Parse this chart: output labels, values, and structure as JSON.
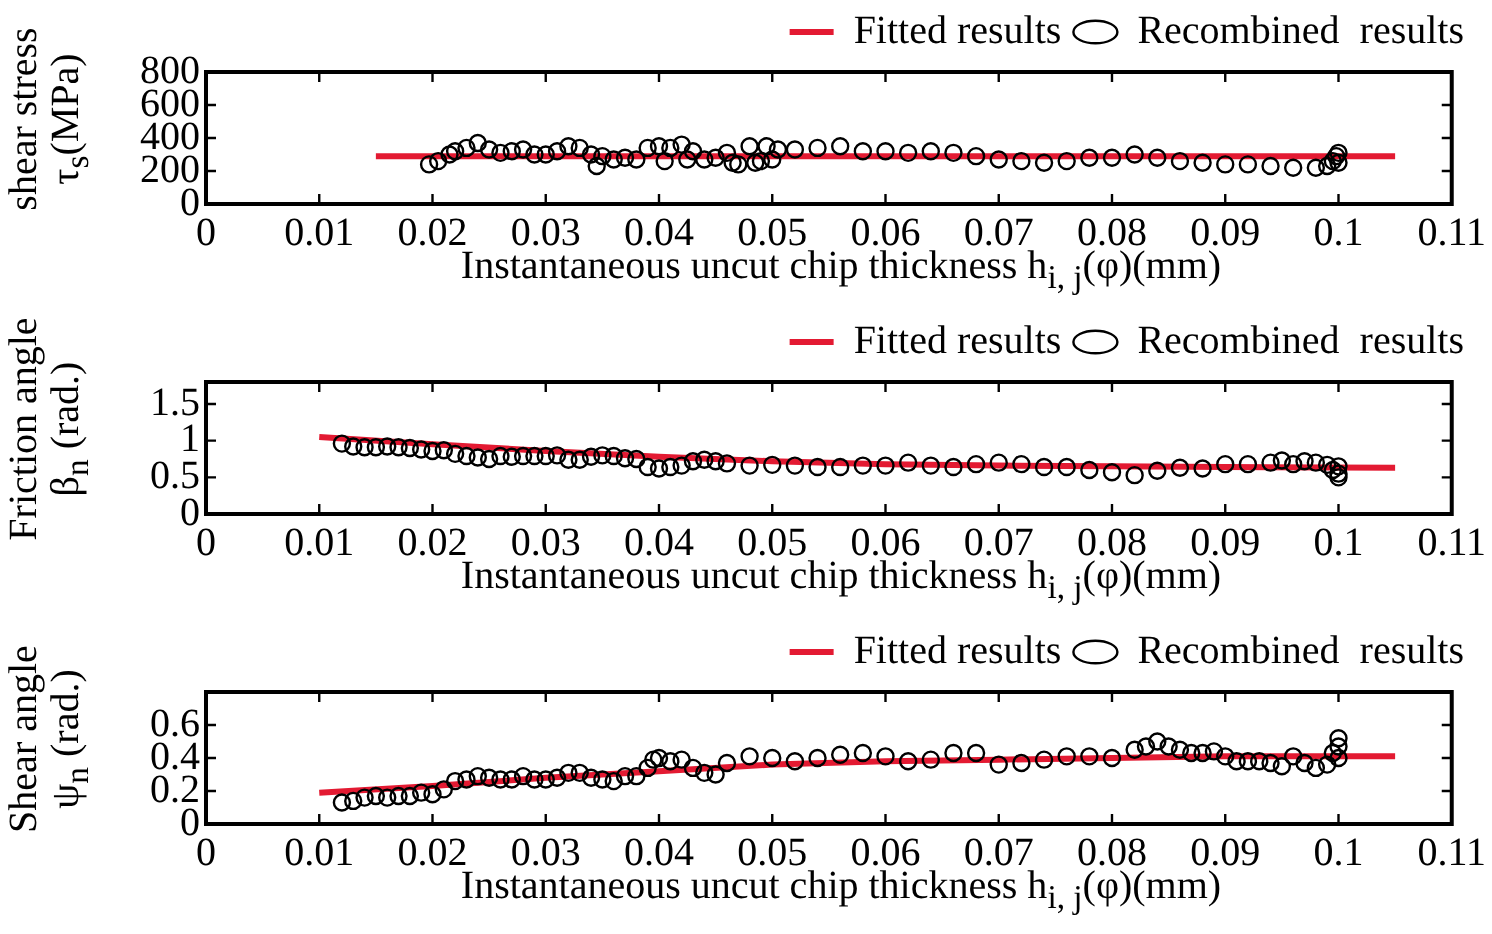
{
  "chart_data": [
    {
      "type": "scatter",
      "xlabel": "Instantaneous uncut chip thickness h$_{i, j}$(φ)(mm)",
      "ylabel": "shear stress\nτ$_{s}$(MPa)",
      "xlim": [
        0,
        0.11
      ],
      "xticks": [
        0,
        0.01,
        0.02,
        0.03,
        0.04,
        0.05,
        0.06,
        0.07,
        0.08,
        0.09,
        0.1,
        0.11
      ],
      "ylim": [
        0,
        800
      ],
      "yticks": [
        0,
        200,
        400,
        600,
        800
      ],
      "legend": "top right",
      "series": [
        {
          "name": "Fitted results",
          "type": "line",
          "color": "#e31a32",
          "marker": "none",
          "x": [
            0.015,
            0.105
          ],
          "values": [
            290,
            290
          ]
        },
        {
          "name": "Recombined  results",
          "color": "#000000",
          "marker": "circle",
          "x": [
            0.0197,
            0.0205,
            0.0215,
            0.022,
            0.023,
            0.024,
            0.025,
            0.026,
            0.027,
            0.028,
            0.029,
            0.03,
            0.031,
            0.032,
            0.033,
            0.034,
            0.0345,
            0.035,
            0.036,
            0.037,
            0.038,
            0.039,
            0.04,
            0.0405,
            0.041,
            0.042,
            0.0425,
            0.043,
            0.044,
            0.045,
            0.046,
            0.0465,
            0.047,
            0.048,
            0.0485,
            0.049,
            0.0495,
            0.05,
            0.0505,
            0.052,
            0.054,
            0.056,
            0.058,
            0.06,
            0.062,
            0.064,
            0.066,
            0.068,
            0.07,
            0.072,
            0.074,
            0.076,
            0.078,
            0.08,
            0.082,
            0.084,
            0.086,
            0.088,
            0.09,
            0.092,
            0.094,
            0.096,
            0.098,
            0.099,
            0.0995,
            0.0998,
            0.1,
            0.1
          ],
          "values": [
            240,
            260,
            300,
            320,
            340,
            370,
            330,
            310,
            320,
            330,
            300,
            300,
            320,
            350,
            340,
            300,
            230,
            290,
            270,
            280,
            270,
            340,
            350,
            260,
            340,
            360,
            270,
            320,
            270,
            280,
            310,
            250,
            240,
            350,
            250,
            260,
            350,
            270,
            330,
            330,
            340,
            350,
            320,
            320,
            310,
            320,
            310,
            290,
            270,
            260,
            250,
            260,
            280,
            280,
            300,
            280,
            260,
            250,
            240,
            240,
            230,
            220,
            220,
            230,
            260,
            290,
            310,
            250
          ]
        }
      ]
    },
    {
      "type": "scatter",
      "xlabel": "Instantaneous uncut chip thickness h$_{i, j}$(φ)(mm)",
      "ylabel": "Friction angle\nβ$_{n}$ (rad.)",
      "xlim": [
        0,
        0.11
      ],
      "xticks": [
        0,
        0.01,
        0.02,
        0.03,
        0.04,
        0.05,
        0.06,
        0.07,
        0.08,
        0.09,
        0.1,
        0.11
      ],
      "ylim": [
        0,
        1.8
      ],
      "yticks": [
        0,
        0.5,
        1,
        1.5
      ],
      "legend": "top right",
      "series": [
        {
          "name": "Fitted results",
          "type": "line",
          "color": "#e31a32",
          "marker": "none",
          "x": [
            0.01,
            0.02,
            0.03,
            0.04,
            0.05,
            0.06,
            0.07,
            0.08,
            0.09,
            0.105
          ],
          "values": [
            1.05,
            0.95,
            0.86,
            0.78,
            0.72,
            0.68,
            0.66,
            0.65,
            0.64,
            0.63
          ]
        },
        {
          "name": "Recombined  results",
          "color": "#000000",
          "marker": "circle",
          "x": [
            0.012,
            0.013,
            0.014,
            0.015,
            0.016,
            0.017,
            0.018,
            0.019,
            0.02,
            0.021,
            0.022,
            0.023,
            0.024,
            0.025,
            0.026,
            0.027,
            0.028,
            0.029,
            0.03,
            0.031,
            0.032,
            0.033,
            0.034,
            0.035,
            0.036,
            0.037,
            0.038,
            0.039,
            0.04,
            0.041,
            0.042,
            0.043,
            0.044,
            0.045,
            0.046,
            0.048,
            0.05,
            0.052,
            0.054,
            0.056,
            0.058,
            0.06,
            0.062,
            0.064,
            0.066,
            0.068,
            0.07,
            0.072,
            0.074,
            0.076,
            0.078,
            0.08,
            0.082,
            0.084,
            0.086,
            0.088,
            0.09,
            0.092,
            0.094,
            0.095,
            0.096,
            0.097,
            0.098,
            0.099,
            0.0995,
            0.1,
            0.1,
            0.1
          ],
          "values": [
            0.96,
            0.92,
            0.91,
            0.91,
            0.92,
            0.91,
            0.9,
            0.88,
            0.86,
            0.87,
            0.82,
            0.79,
            0.77,
            0.75,
            0.79,
            0.78,
            0.79,
            0.79,
            0.79,
            0.8,
            0.74,
            0.74,
            0.78,
            0.8,
            0.79,
            0.76,
            0.75,
            0.64,
            0.62,
            0.64,
            0.66,
            0.72,
            0.74,
            0.72,
            0.69,
            0.66,
            0.67,
            0.66,
            0.64,
            0.64,
            0.66,
            0.66,
            0.7,
            0.66,
            0.64,
            0.68,
            0.7,
            0.68,
            0.64,
            0.64,
            0.6,
            0.57,
            0.53,
            0.59,
            0.63,
            0.62,
            0.68,
            0.68,
            0.7,
            0.73,
            0.68,
            0.72,
            0.7,
            0.67,
            0.6,
            0.55,
            0.5,
            0.65
          ]
        }
      ]
    },
    {
      "type": "scatter",
      "xlabel": "Instantaneous uncut chip thickness h$_{i, j}$(φ)(mm)",
      "ylabel": "Shear angle\nψ$_{n}$ (rad.)",
      "xlim": [
        0,
        0.11
      ],
      "xticks": [
        0,
        0.01,
        0.02,
        0.03,
        0.04,
        0.05,
        0.06,
        0.07,
        0.08,
        0.09,
        0.1,
        0.11
      ],
      "ylim": [
        0,
        0.8
      ],
      "yticks": [
        0,
        0.2,
        0.4,
        0.6
      ],
      "legend": "top right",
      "series": [
        {
          "name": "Fitted results",
          "type": "line",
          "color": "#e31a32",
          "marker": "none",
          "x": [
            0.01,
            0.02,
            0.03,
            0.04,
            0.05,
            0.06,
            0.07,
            0.08,
            0.09,
            0.105
          ],
          "values": [
            0.19,
            0.23,
            0.28,
            0.32,
            0.36,
            0.38,
            0.39,
            0.4,
            0.41,
            0.41
          ]
        },
        {
          "name": "Recombined  results",
          "color": "#000000",
          "marker": "circle",
          "x": [
            0.012,
            0.013,
            0.014,
            0.015,
            0.016,
            0.017,
            0.018,
            0.019,
            0.02,
            0.021,
            0.022,
            0.023,
            0.024,
            0.025,
            0.026,
            0.027,
            0.028,
            0.029,
            0.03,
            0.031,
            0.032,
            0.033,
            0.034,
            0.035,
            0.036,
            0.037,
            0.038,
            0.039,
            0.0395,
            0.04,
            0.041,
            0.042,
            0.043,
            0.044,
            0.045,
            0.046,
            0.048,
            0.05,
            0.052,
            0.054,
            0.056,
            0.058,
            0.06,
            0.062,
            0.064,
            0.066,
            0.068,
            0.07,
            0.072,
            0.074,
            0.076,
            0.078,
            0.08,
            0.082,
            0.083,
            0.084,
            0.085,
            0.086,
            0.087,
            0.088,
            0.089,
            0.09,
            0.091,
            0.092,
            0.093,
            0.094,
            0.095,
            0.096,
            0.097,
            0.098,
            0.099,
            0.0995,
            0.1,
            0.1,
            0.1
          ],
          "values": [
            0.13,
            0.14,
            0.16,
            0.17,
            0.16,
            0.17,
            0.17,
            0.19,
            0.18,
            0.21,
            0.26,
            0.27,
            0.29,
            0.28,
            0.27,
            0.27,
            0.29,
            0.27,
            0.27,
            0.28,
            0.31,
            0.31,
            0.28,
            0.27,
            0.26,
            0.29,
            0.29,
            0.34,
            0.39,
            0.4,
            0.38,
            0.39,
            0.34,
            0.31,
            0.3,
            0.37,
            0.41,
            0.4,
            0.38,
            0.4,
            0.42,
            0.43,
            0.41,
            0.38,
            0.39,
            0.43,
            0.43,
            0.36,
            0.37,
            0.39,
            0.41,
            0.41,
            0.4,
            0.45,
            0.47,
            0.5,
            0.47,
            0.45,
            0.43,
            0.43,
            0.44,
            0.41,
            0.38,
            0.38,
            0.38,
            0.37,
            0.35,
            0.41,
            0.37,
            0.34,
            0.36,
            0.43,
            0.47,
            0.52,
            0.4
          ]
        }
      ]
    }
  ]
}
